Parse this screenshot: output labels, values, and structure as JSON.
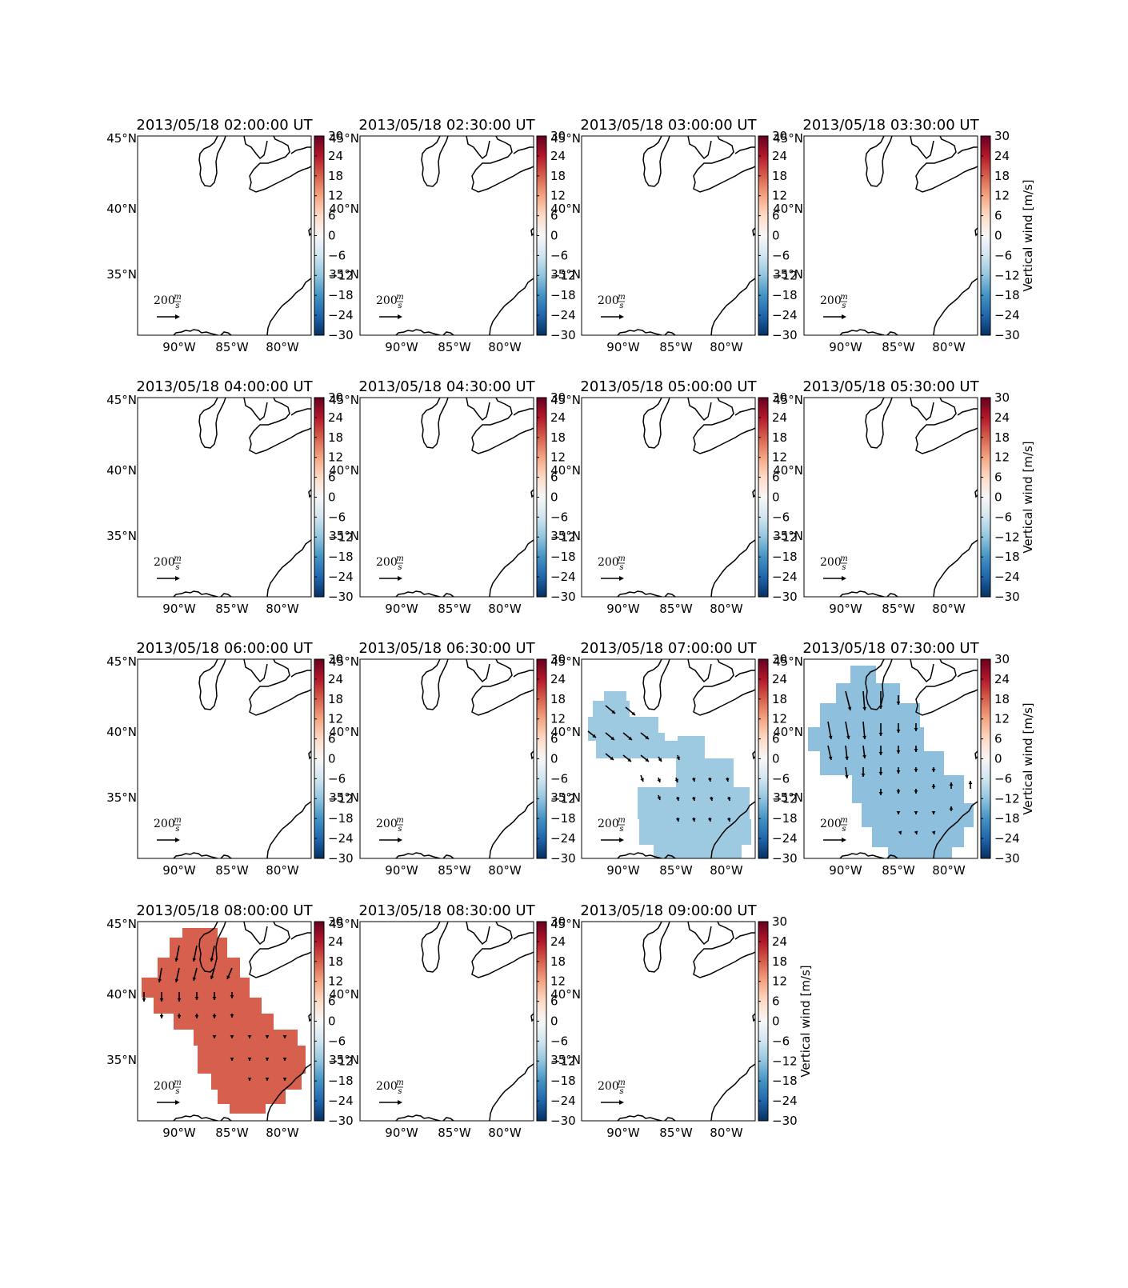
{
  "figure": {
    "panels": [
      {
        "title": "2013/05/18 02:00:00 UT",
        "has_colorbar_label": false,
        "wind": "none"
      },
      {
        "title": "2013/05/18 02:30:00 UT",
        "has_colorbar_label": false,
        "wind": "none"
      },
      {
        "title": "2013/05/18 03:00:00 UT",
        "has_colorbar_label": false,
        "wind": "none"
      },
      {
        "title": "2013/05/18 03:30:00 UT",
        "has_colorbar_label": true,
        "wind": "none"
      },
      {
        "title": "2013/05/18 04:00:00 UT",
        "has_colorbar_label": false,
        "wind": "none"
      },
      {
        "title": "2013/05/18 04:30:00 UT",
        "has_colorbar_label": false,
        "wind": "none"
      },
      {
        "title": "2013/05/18 05:00:00 UT",
        "has_colorbar_label": false,
        "wind": "none"
      },
      {
        "title": "2013/05/18 05:30:00 UT",
        "has_colorbar_label": true,
        "wind": "none"
      },
      {
        "title": "2013/05/18 06:00:00 UT",
        "has_colorbar_label": false,
        "wind": "none"
      },
      {
        "title": "2013/05/18 06:30:00 UT",
        "has_colorbar_label": false,
        "wind": "none"
      },
      {
        "title": "2013/05/18 07:00:00 UT",
        "has_colorbar_label": false,
        "wind": "light-blue"
      },
      {
        "title": "2013/05/18 07:30:00 UT",
        "has_colorbar_label": true,
        "wind": "blue"
      },
      {
        "title": "2013/05/18 08:00:00 UT",
        "has_colorbar_label": false,
        "wind": "red"
      },
      {
        "title": "2013/05/18 08:30:00 UT",
        "has_colorbar_label": false,
        "wind": "none"
      },
      {
        "title": "2013/05/18 09:00:00 UT",
        "has_colorbar_label": true,
        "wind": "none"
      }
    ],
    "lat_ticks": [
      "45°N",
      "40°N",
      "35°N"
    ],
    "lon_ticks": [
      "90°W",
      "85°W",
      "80°W"
    ],
    "colorbar_ticks": [
      "30",
      "24",
      "18",
      "12",
      "6",
      "0",
      "−6",
      "−12",
      "−18",
      "−24",
      "−30"
    ],
    "colorbar_label": "Vertical wind [m/s]",
    "quiver_key": {
      "number": "200",
      "num": "m",
      "den": "s"
    },
    "colors": {
      "light_blue": "#9ecae1",
      "blue": "#8ebfdc",
      "red": "#d6604d",
      "coast": "#000000"
    }
  }
}
